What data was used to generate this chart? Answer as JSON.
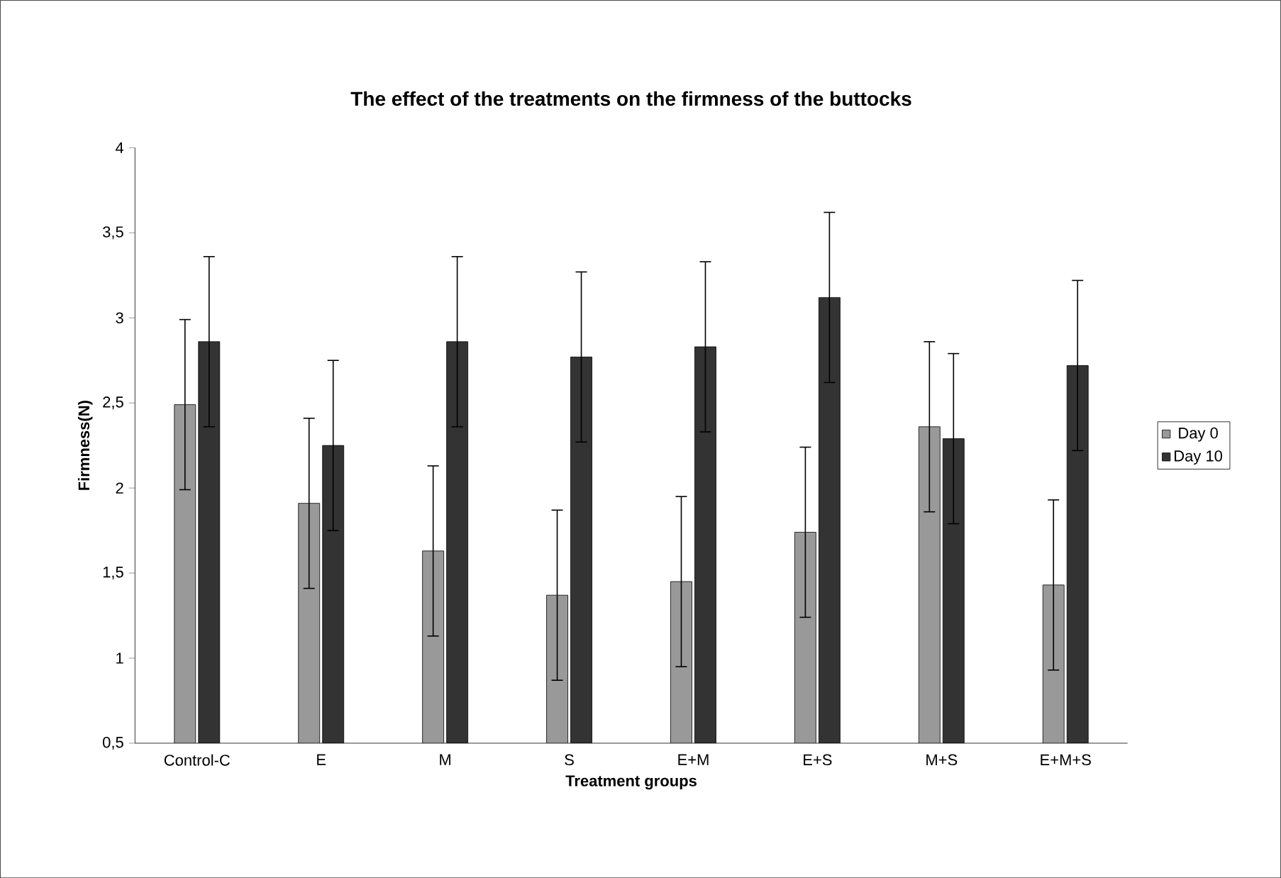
{
  "chart_data": {
    "type": "bar",
    "title": "The effect of the treatments on the firmness of the buttocks",
    "xlabel": "Treatment groups",
    "ylabel": "Firmness(N)",
    "categories": [
      "Control-C",
      "E",
      "M",
      "S",
      "E+M",
      "E+S",
      "M+S",
      "E+M+S"
    ],
    "series": [
      {
        "name": "Day 0",
        "color": "#999999",
        "values": [
          2.49,
          1.91,
          1.63,
          1.37,
          1.45,
          1.74,
          2.36,
          1.43
        ],
        "errors": [
          0.5,
          0.5,
          0.5,
          0.5,
          0.5,
          0.5,
          0.5,
          0.5
        ]
      },
      {
        "name": "Day 10",
        "color": "#333333",
        "values": [
          2.86,
          2.25,
          2.86,
          2.77,
          2.83,
          3.12,
          2.29,
          2.72
        ],
        "errors": [
          0.5,
          0.5,
          0.5,
          0.5,
          0.5,
          0.5,
          0.5,
          0.5
        ]
      }
    ],
    "ylim": [
      0.5,
      4
    ],
    "yticks": [
      {
        "value": 0.5,
        "label": "0,5"
      },
      1,
      {
        "value": 1.5,
        "label": "1,5"
      },
      2,
      {
        "value": 2.5,
        "label": "2,5"
      },
      3,
      {
        "value": 3.5,
        "label": "3,5"
      },
      4
    ],
    "grid": false,
    "legend": "right"
  }
}
